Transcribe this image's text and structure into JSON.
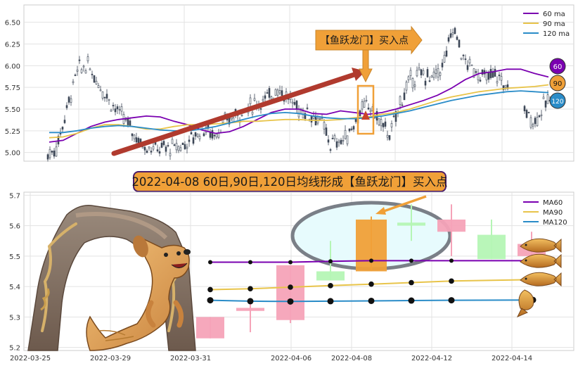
{
  "chart_data": [
    {
      "type": "candlestick",
      "panel": "top",
      "title": "",
      "xlabel": "",
      "ylabel": "",
      "ylim": [
        4.9,
        6.7
      ],
      "yticks": [
        5.0,
        5.25,
        5.5,
        5.75,
        6.0,
        6.25,
        6.5
      ],
      "ytick_labels": [
        "5.00",
        "5.25",
        "5.50",
        "5.75",
        "6.00",
        "6.25",
        "6.50"
      ],
      "grid": true,
      "legend_position": "top-right",
      "legend": [
        "60 ma",
        "90 ma",
        "120 ma"
      ],
      "colors": {
        "ma60": "#7a00b0",
        "ma90": "#e8c44a",
        "ma120": "#2a8cc8",
        "candle": "#3d4656",
        "arrow": "#b03a2e",
        "callout": "#f0a038"
      },
      "ma_series": [
        {
          "name": "60 ma",
          "values": [
            5.12,
            5.14,
            5.22,
            5.3,
            5.35,
            5.38,
            5.4,
            5.42,
            5.41,
            5.36,
            5.32,
            5.26,
            5.22,
            5.24,
            5.3,
            5.38,
            5.46,
            5.5,
            5.5,
            5.45,
            5.44,
            5.48,
            5.46,
            5.44,
            5.46,
            5.5,
            5.55,
            5.6,
            5.66,
            5.74,
            5.84,
            5.91,
            5.93,
            5.96,
            5.96,
            5.91,
            5.87
          ]
        },
        {
          "name": "90 ma",
          "values": [
            5.17,
            5.18,
            5.22,
            5.28,
            5.32,
            5.32,
            5.3,
            5.27,
            5.27,
            5.3,
            5.32,
            5.32,
            5.33,
            5.34,
            5.36,
            5.36,
            5.37,
            5.38,
            5.38,
            5.37,
            5.37,
            5.38,
            5.4,
            5.41,
            5.44,
            5.46,
            5.5,
            5.55,
            5.6,
            5.64,
            5.67,
            5.7,
            5.72,
            5.74,
            5.75,
            5.76,
            5.78
          ]
        },
        {
          "name": "120 ma",
          "values": [
            5.23,
            5.23,
            5.25,
            5.28,
            5.3,
            5.31,
            5.3,
            5.28,
            5.26,
            5.25,
            5.25,
            5.27,
            5.3,
            5.34,
            5.38,
            5.42,
            5.45,
            5.46,
            5.45,
            5.42,
            5.4,
            5.39,
            5.39,
            5.4,
            5.42,
            5.45,
            5.48,
            5.52,
            5.56,
            5.6,
            5.63,
            5.66,
            5.68,
            5.7,
            5.71,
            5.7,
            5.69
          ]
        }
      ],
      "annotations": [
        {
          "text": "【鱼跃龙门】买入点",
          "type": "callout-arrow"
        },
        {
          "text": "60",
          "type": "badge",
          "color": "#7a00b0"
        },
        {
          "text": "90",
          "type": "badge",
          "color": "#f0a038"
        },
        {
          "text": "120",
          "type": "badge",
          "color": "#2a8cc8"
        }
      ]
    },
    {
      "type": "candlestick",
      "panel": "bottom",
      "title": "2022-04-08 60日,90日,120日均线形成【鱼跃龙门】买入点",
      "xlabel": "",
      "ylabel": "",
      "ylim": [
        5.19,
        5.71
      ],
      "yticks": [
        5.2,
        5.3,
        5.4,
        5.5,
        5.6,
        5.7
      ],
      "ytick_labels": [
        "5.2",
        "5.3",
        "5.4",
        "5.5",
        "5.6",
        "5.7"
      ],
      "x_tick_labels": [
        "2022-03-25",
        "2022-03-29",
        "2022-03-31",
        "2022-04-06",
        "2022-04-08",
        "2022-04-12",
        "2022-04-14"
      ],
      "grid": true,
      "legend_position": "top-right",
      "legend": [
        "MA60",
        "MA90",
        "MA120"
      ],
      "candles": [
        {
          "date": "2022-03-30",
          "open": 5.3,
          "close": 5.23,
          "high": 5.3,
          "low": 5.23,
          "color": "#f5a3b8"
        },
        {
          "date": "2022-03-31",
          "open": 5.33,
          "close": 5.32,
          "high": 5.35,
          "low": 5.25,
          "color": "#f5a3b8"
        },
        {
          "date": "2022-04-06",
          "open": 5.47,
          "close": 5.29,
          "high": 5.47,
          "low": 5.28,
          "color": "#f5a3b8"
        },
        {
          "date": "2022-04-07",
          "open": 5.42,
          "close": 5.45,
          "high": 5.55,
          "low": 5.42,
          "color": "#b5f5b5"
        },
        {
          "date": "2022-04-08",
          "open": 5.45,
          "close": 5.62,
          "high": 5.63,
          "low": 5.45,
          "color": "#f0a038"
        },
        {
          "date": "2022-04-11",
          "open": 5.61,
          "close": 5.6,
          "high": 5.67,
          "low": 5.55,
          "color": "#b5f5b5"
        },
        {
          "date": "2022-04-12",
          "open": 5.62,
          "close": 5.58,
          "high": 5.67,
          "low": 5.5,
          "color": "#f5a3b8"
        },
        {
          "date": "2022-04-13",
          "open": 5.49,
          "close": 5.57,
          "high": 5.62,
          "low": 5.49,
          "color": "#b5f5b5"
        },
        {
          "date": "2022-04-14",
          "open": 5.54,
          "close": 5.5,
          "high": 5.58,
          "low": 5.5,
          "color": "#f5a3b8"
        }
      ],
      "ma_series": [
        {
          "name": "MA60",
          "color": "#7a00b0",
          "values": [
            5.48,
            5.48,
            5.48,
            5.483,
            5.485,
            5.485,
            5.485,
            5.485
          ]
        },
        {
          "name": "MA90",
          "color": "#e8c44a",
          "values": [
            5.39,
            5.393,
            5.398,
            5.403,
            5.408,
            5.413,
            5.418,
            5.423
          ]
        },
        {
          "name": "MA120",
          "color": "#2a8cc8",
          "values": [
            5.355,
            5.352,
            5.351,
            5.352,
            5.353,
            5.354,
            5.355,
            5.356
          ]
        }
      ],
      "annotations": [
        {
          "text": "",
          "type": "highlight-ellipse",
          "target": "2022-04-08"
        }
      ]
    }
  ]
}
